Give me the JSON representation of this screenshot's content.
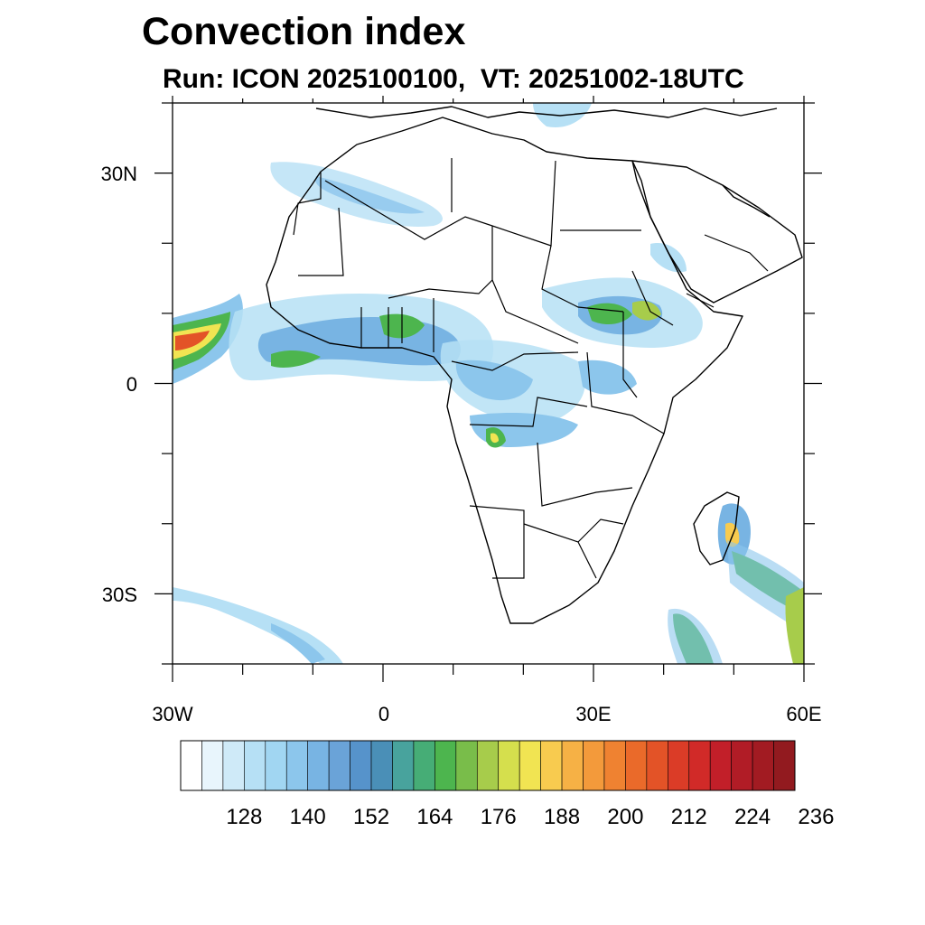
{
  "header": {
    "title": "Convection index",
    "subtitle": "Run: ICON 2025100100,  VT: 20251002-18UTC"
  },
  "map": {
    "lon_ticks": [
      "30W",
      "0",
      "30E",
      "60E"
    ],
    "lat_ticks": [
      "30N",
      "0",
      "30S"
    ]
  },
  "colorbar": {
    "labels": [
      "128",
      "140",
      "152",
      "164",
      "176",
      "188",
      "200",
      "212",
      "224",
      "236"
    ],
    "colors": [
      "#ffffff",
      "#e8f5fc",
      "#cfeaf8",
      "#b6e0f5",
      "#a1d6f2",
      "#8cc6ec",
      "#78b4e3",
      "#6aa3d8",
      "#5693cb",
      "#4a8fb7",
      "#48a39d",
      "#46ad76",
      "#4db54e",
      "#79bd4a",
      "#a7cc4b",
      "#d5df4d",
      "#f1e452",
      "#f8cb4f",
      "#f6b145",
      "#f39a3b",
      "#ef8231",
      "#ea6a2a",
      "#e35327",
      "#db3c27",
      "#d12a28",
      "#c21f29",
      "#b11c26",
      "#a21b22",
      "#921a1f"
    ]
  }
}
